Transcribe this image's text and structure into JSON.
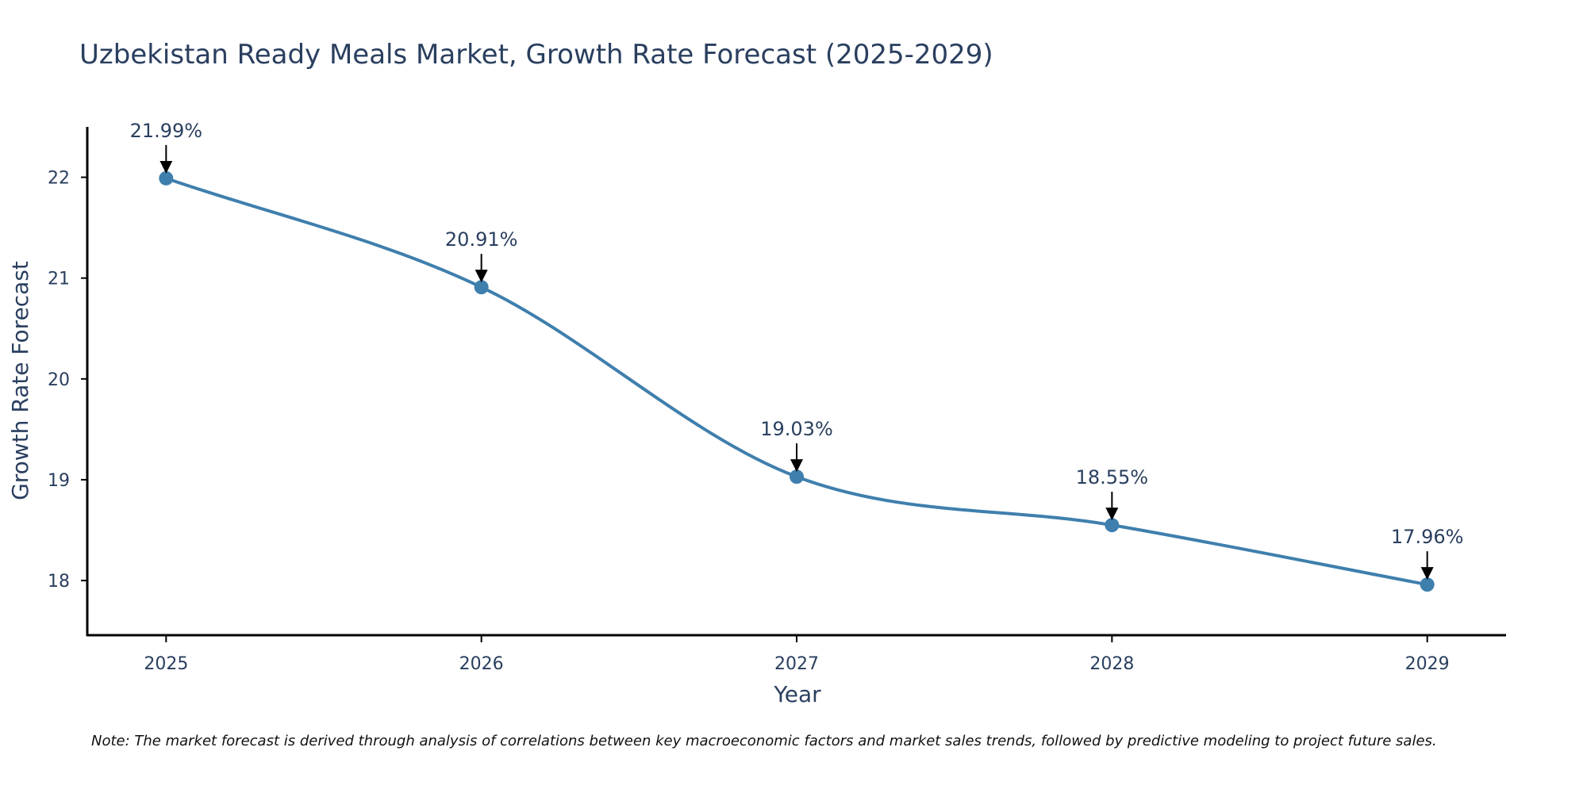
{
  "chart_data": {
    "type": "line",
    "title": "Uzbekistan Ready Meals Market, Growth Rate Forecast (2025-2029)",
    "xlabel": "Year",
    "ylabel": "Growth Rate Forecast",
    "categories": [
      "2025",
      "2026",
      "2027",
      "2028",
      "2029"
    ],
    "series": [
      {
        "name": "Growth Rate Forecast",
        "values": [
          21.99,
          20.91,
          19.03,
          18.55,
          17.96
        ],
        "labels": [
          "21.99%",
          "20.91%",
          "19.03%",
          "18.55%",
          "17.96%"
        ]
      }
    ],
    "y_ticks": [
      18,
      19,
      20,
      21,
      22
    ],
    "ylim": [
      17.45,
      22.5
    ],
    "x_range": [
      -0.25,
      4.25
    ],
    "grid": false,
    "line_color": "#3f7fad",
    "marker_color": "#3f7fad",
    "note": "Note: The market forecast is derived through analysis of correlations between key macroeconomic factors and market sales trends, followed by predictive modeling to project future sales."
  }
}
